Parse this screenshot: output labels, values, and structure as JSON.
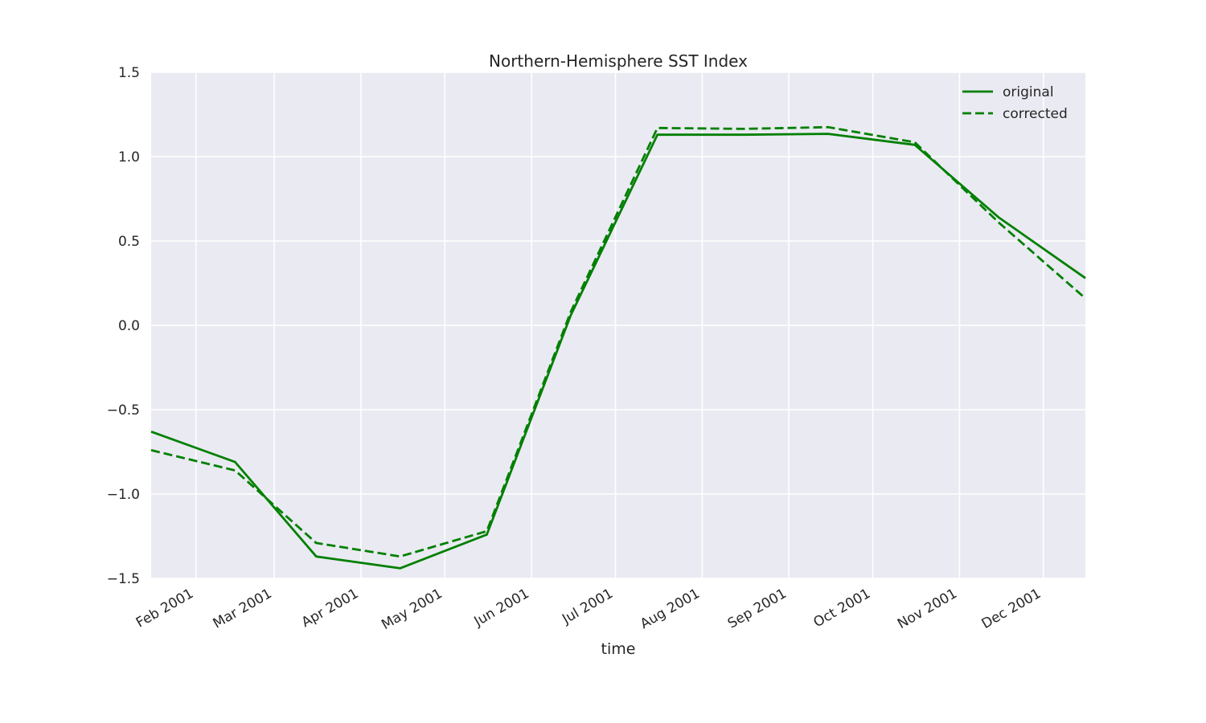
{
  "chart_data": {
    "type": "line",
    "title": "Northern-Hemisphere SST Index",
    "xlabel": "time",
    "ylabel": "",
    "x_type": "date",
    "xlim": [
      "2001-01-16",
      "2001-12-16"
    ],
    "ylim": [
      -1.5,
      1.5
    ],
    "x_ticks": [
      "2001-02-01",
      "2001-03-01",
      "2001-04-01",
      "2001-05-01",
      "2001-06-01",
      "2001-07-01",
      "2001-08-01",
      "2001-09-01",
      "2001-10-01",
      "2001-11-01",
      "2001-12-01"
    ],
    "x_tick_labels": [
      "Feb 2001",
      "Mar 2001",
      "Apr 2001",
      "May 2001",
      "Jun 2001",
      "Jul 2001",
      "Aug 2001",
      "Sep 2001",
      "Oct 2001",
      "Nov 2001",
      "Dec 2001"
    ],
    "y_ticks": [
      -1.5,
      -1.0,
      -0.5,
      0.0,
      0.5,
      1.0,
      1.5
    ],
    "y_tick_labels": [
      "−1.5",
      "−1.0",
      "−0.5",
      "0.0",
      "0.5",
      "1.0",
      "1.5"
    ],
    "x": [
      "2001-01-16",
      "2001-02-15",
      "2001-03-16",
      "2001-04-15",
      "2001-05-16",
      "2001-06-15",
      "2001-07-16",
      "2001-08-16",
      "2001-09-15",
      "2001-10-16",
      "2001-11-15",
      "2001-12-16"
    ],
    "series": [
      {
        "name": "original",
        "style": "solid",
        "color": "#008000",
        "values": [
          -0.63,
          -0.81,
          -1.37,
          -1.44,
          -1.24,
          0.06,
          1.13,
          1.13,
          1.135,
          1.07,
          0.64,
          0.28
        ]
      },
      {
        "name": "corrected",
        "style": "dashed",
        "color": "#008000",
        "values": [
          -0.74,
          -0.86,
          -1.29,
          -1.37,
          -1.22,
          0.08,
          1.17,
          1.165,
          1.175,
          1.085,
          0.61,
          0.16
        ]
      }
    ],
    "grid": true,
    "legend_position": "top-right",
    "colors": {
      "plot_background": "#eaeaf2",
      "grid": "#ffffff",
      "line": "#008000"
    }
  }
}
